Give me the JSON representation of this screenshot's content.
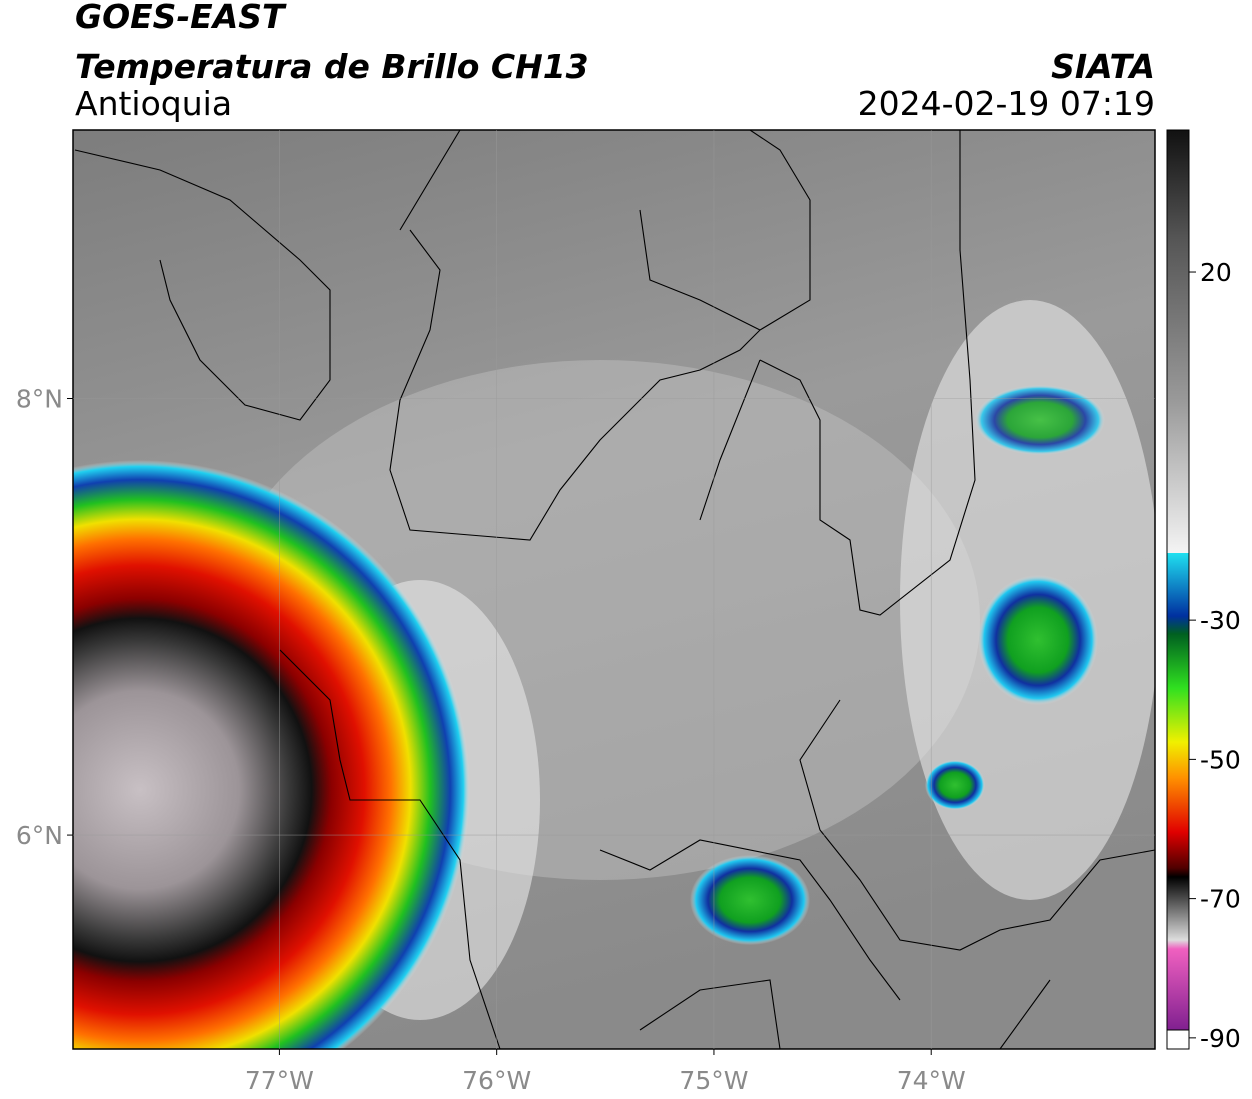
{
  "header": {
    "satellite": "GOES-EAST",
    "product": "Temperatura de Brillo CH13",
    "region": "Antioquia",
    "source": "SIATA",
    "datetime": "2024-02-19 07:19"
  },
  "map": {
    "xlim": [
      -77.95,
      -72.97
    ],
    "ylim": [
      5.02,
      9.23
    ],
    "xticks": [
      {
        "value": -77,
        "label": "77°W"
      },
      {
        "value": -76,
        "label": "76°W"
      },
      {
        "value": -75,
        "label": "75°W"
      },
      {
        "value": -74,
        "label": "74°W"
      }
    ],
    "yticks": [
      {
        "value": 6,
        "label": "6°N"
      },
      {
        "value": 8,
        "label": "8°N"
      }
    ]
  },
  "colorbar": {
    "lim": [
      -91.6,
      40.4
    ],
    "ticks": [
      20,
      -30,
      -50,
      -70,
      -90
    ]
  }
}
